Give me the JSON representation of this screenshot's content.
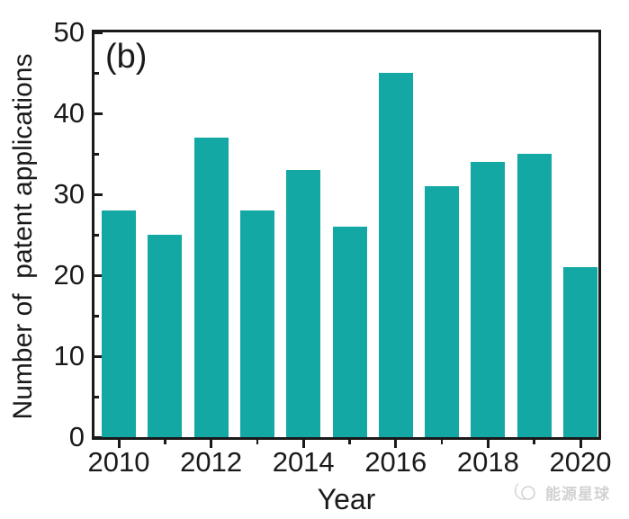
{
  "figure": {
    "panel_label": "(b)"
  },
  "watermark": {
    "icon": "planet-icon",
    "text": "能源星球"
  },
  "chart_data": {
    "type": "bar",
    "title": "",
    "x": [
      2010,
      2011,
      2012,
      2013,
      2014,
      2015,
      2016,
      2017,
      2018,
      2019,
      2020
    ],
    "values": [
      28,
      25,
      37,
      28,
      33,
      26,
      45,
      31,
      34,
      35,
      21
    ],
    "xlabel": "Year",
    "ylabel": "Number of  patent applications",
    "ylim": [
      0,
      50
    ],
    "yticks_major": [
      0,
      10,
      20,
      30,
      40,
      50
    ],
    "yticks_minor": [
      5,
      15,
      25,
      35,
      45
    ],
    "xticks_major": [
      2010,
      2012,
      2014,
      2016,
      2018,
      2020
    ],
    "xticks_minor": [
      2011,
      2013,
      2015,
      2017,
      2019
    ],
    "bar_color": "#13a8a3",
    "axis_color": "#1a1a1a",
    "grid": false,
    "legend": null,
    "annotation": "(b)"
  }
}
